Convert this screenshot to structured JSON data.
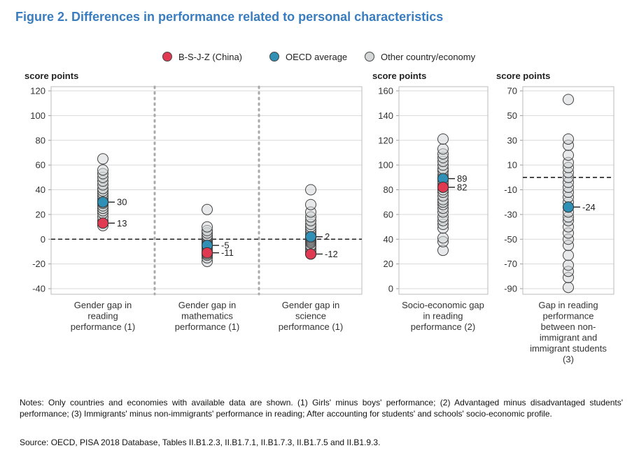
{
  "title": "Figure 2. Differences in performance related to personal characteristics",
  "legend": [
    {
      "label": "B-S-J-Z (China)",
      "color": "#e03a52"
    },
    {
      "label": "OECD average",
      "color": "#2f8fb5"
    },
    {
      "label": "Other country/economy",
      "color": "#d4d7d8"
    }
  ],
  "chart_data": [
    {
      "type": "scatter",
      "ylabel": "score points",
      "ylim": [
        -40,
        120
      ],
      "yticks": [
        -40,
        -20,
        0,
        20,
        40,
        60,
        80,
        100,
        120
      ],
      "reference_line": 0,
      "grid": true,
      "categories": [
        "Gender gap in reading performance (1)",
        "Gender gap in mathematics performance (1)",
        "Gender gap in science performance (1)"
      ],
      "series": [
        {
          "name": "OECD average",
          "values": [
            30,
            -5,
            2
          ]
        },
        {
          "name": "B-S-J-Z (China)",
          "values": [
            13,
            -11,
            -12
          ]
        },
        {
          "name": "Other country/economy",
          "values": [
            [
              11,
              15,
              18,
              21,
              23,
              25,
              27,
              29,
              31,
              33,
              35,
              37,
              39,
              41,
              44,
              47,
              50,
              53,
              56,
              65
            ],
            [
              -18,
              -15,
              -13,
              -12,
              -10,
              -8,
              -6,
              -5,
              -4,
              -3,
              -2,
              -1,
              0,
              1,
              2,
              3,
              5,
              7,
              10,
              24
            ],
            [
              -12,
              -10,
              -8,
              -6,
              -5,
              -3,
              -2,
              -1,
              0,
              1,
              2,
              4,
              6,
              8,
              10,
              12,
              15,
              18,
              22,
              28,
              40
            ]
          ]
        }
      ]
    },
    {
      "type": "scatter",
      "ylabel": "score points",
      "ylim": [
        0,
        160
      ],
      "yticks": [
        0,
        20,
        40,
        60,
        80,
        100,
        120,
        140,
        160
      ],
      "grid": true,
      "categories": [
        "Socio-economic gap in reading performance (2)"
      ],
      "series": [
        {
          "name": "OECD average",
          "values": [
            89
          ]
        },
        {
          "name": "B-S-J-Z (China)",
          "values": [
            82
          ]
        },
        {
          "name": "Other country/economy",
          "values": [
            [
              31,
              38,
              41,
              49,
              52,
              55,
              58,
              62,
              65,
              68,
              70,
              72,
              75,
              78,
              80,
              83,
              85,
              87,
              90,
              92,
              95,
              97,
              100,
              103,
              106,
              109,
              113,
              121
            ]
          ]
        }
      ]
    },
    {
      "type": "scatter",
      "ylabel": "score points",
      "ylim": [
        -90,
        70
      ],
      "yticks": [
        -90,
        -70,
        -50,
        -30,
        -10,
        10,
        30,
        50,
        70
      ],
      "reference_line": 0,
      "grid": true,
      "categories": [
        "Gap in reading performance between non-immigrant and immigrant students (3)"
      ],
      "series": [
        {
          "name": "OECD average",
          "values": [
            -24
          ]
        },
        {
          "name": "Other country/economy",
          "values": [
            [
              -89,
              -81,
              -76,
              -71,
              -63,
              -55,
              -50,
              -45,
              -40,
              -35,
              -32,
              -28,
              -24,
              -20,
              -16,
              -12,
              -8,
              -4,
              0,
              4,
              8,
              12,
              18,
              26,
              31,
              63
            ]
          ]
        }
      ]
    }
  ],
  "panels": [
    {
      "ylabel": "score points",
      "tick_labels": [
        "-40",
        "-20",
        "0",
        "20",
        "40",
        "60",
        "80",
        "100",
        "120"
      ],
      "categories": [
        {
          "lines": [
            "Gender gap in",
            "reading",
            "performance (1)"
          ]
        },
        {
          "lines": [
            "Gender gap in",
            "mathematics",
            "performance (1)"
          ]
        },
        {
          "lines": [
            "Gender gap in",
            "science",
            "performance (1)"
          ]
        }
      ],
      "labels": [
        {
          "oecd": "30",
          "china": "13"
        },
        {
          "oecd": "-5",
          "china": "-11"
        },
        {
          "oecd": "2",
          "china": "-12"
        }
      ]
    },
    {
      "ylabel": "score points",
      "tick_labels": [
        "0",
        "20",
        "40",
        "60",
        "80",
        "100",
        "120",
        "140",
        "160"
      ],
      "categories": [
        {
          "lines": [
            "Socio-economic gap",
            "in reading",
            "performance (2)"
          ]
        }
      ],
      "labels": [
        {
          "oecd": "89",
          "china": "82"
        }
      ]
    },
    {
      "ylabel": "score points",
      "tick_labels": [
        "-90",
        "-70",
        "-50",
        "-30",
        "-10",
        "10",
        "30",
        "50",
        "70"
      ],
      "categories": [
        {
          "lines": [
            "Gap in reading",
            "performance",
            "between non-",
            "immigrant and",
            "immigrant students",
            "(3)"
          ]
        }
      ],
      "labels": [
        {
          "oecd": "-24"
        }
      ]
    }
  ],
  "notes": "Notes: Only countries and economies with available data are shown. (1) Girls' minus boys' performance; (2) Advantaged minus disadvantaged students' performance; (3) Immigrants' minus non-immigrants' performance in reading; After accounting for students' and schools' socio-economic profile.",
  "source": "Source: OECD, PISA 2018 Database, Tables II.B1.2.3, II.B1.7.1, II.B1.7.3, II.B1.7.5 and II.B1.9.3."
}
